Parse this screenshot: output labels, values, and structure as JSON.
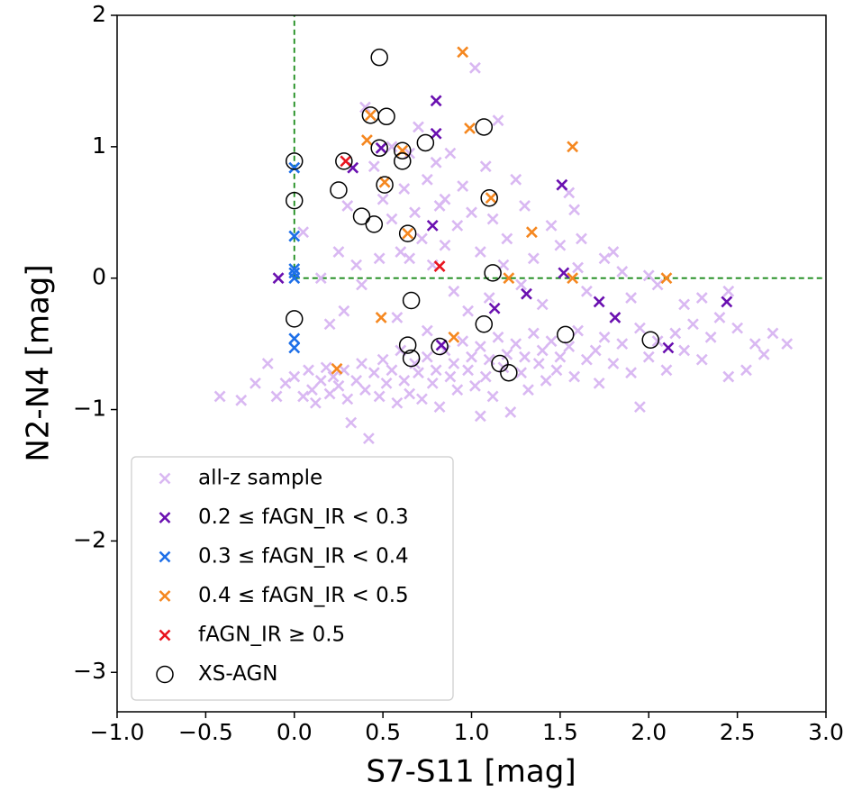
{
  "chart_data": {
    "type": "scatter",
    "xlabel": "S7-S11 [mag]",
    "ylabel": "N2-N4 [mag]",
    "xlim": [
      -1.0,
      3.0
    ],
    "ylim": [
      -3.3,
      2
    ],
    "xticks": [
      {
        "value": -1.0,
        "label": "−1.0"
      },
      {
        "value": -0.5,
        "label": "−0.5"
      },
      {
        "value": 0.0,
        "label": "0.0"
      },
      {
        "value": 0.5,
        "label": "0.5"
      },
      {
        "value": 1.0,
        "label": "1.0"
      },
      {
        "value": 1.5,
        "label": "1.5"
      },
      {
        "value": 2.0,
        "label": "2.0"
      },
      {
        "value": 2.5,
        "label": "2.5"
      },
      {
        "value": 3.0,
        "label": "3.0"
      }
    ],
    "yticks": [
      {
        "value": -3,
        "label": "−3"
      },
      {
        "value": -2,
        "label": "−2"
      },
      {
        "value": -1,
        "label": "−1"
      },
      0,
      1,
      2
    ],
    "grid": false,
    "legend": "lower left",
    "ref_lines": {
      "x": 0,
      "y": 0,
      "color": "#1a8a1a"
    },
    "series": [
      {
        "name": "all-z sample",
        "color": "#d9b8f2",
        "marker": "x",
        "x": [
          -0.42,
          -0.3,
          -0.22,
          -0.15,
          -0.1,
          -0.05,
          0.0,
          0.05,
          0.08,
          0.1,
          0.12,
          0.15,
          0.18,
          0.2,
          0.22,
          0.25,
          0.28,
          0.3,
          0.32,
          0.35,
          0.38,
          0.4,
          0.42,
          0.45,
          0.48,
          0.5,
          0.52,
          0.55,
          0.58,
          0.6,
          0.62,
          0.65,
          0.68,
          0.7,
          0.72,
          0.75,
          0.78,
          0.8,
          0.82,
          0.85,
          0.88,
          0.9,
          0.92,
          0.95,
          0.98,
          1.0,
          1.02,
          1.05,
          1.08,
          1.1,
          1.12,
          1.15,
          1.18,
          1.2,
          1.22,
          1.25,
          1.28,
          1.3,
          1.32,
          1.35,
          1.38,
          1.4,
          1.42,
          1.45,
          1.48,
          1.5,
          1.55,
          1.58,
          1.6,
          1.65,
          1.7,
          1.72,
          1.75,
          1.8,
          1.85,
          1.9,
          1.95,
          2.0,
          2.05,
          2.1,
          2.15,
          2.2,
          2.25,
          2.3,
          2.35,
          2.4,
          2.45,
          2.5,
          2.55,
          2.6,
          2.65,
          2.7,
          2.78,
          1.95,
          1.05,
          0.05,
          0.25,
          0.3,
          0.35,
          0.38,
          0.28,
          0.45,
          0.5,
          0.55,
          0.55,
          0.6,
          0.62,
          0.65,
          0.68,
          0.7,
          0.72,
          0.75,
          0.78,
          0.8,
          0.82,
          0.85,
          0.88,
          0.9,
          0.92,
          0.95,
          0.98,
          1.0,
          1.02,
          1.05,
          1.08,
          1.1,
          1.12,
          1.15,
          1.18,
          1.2,
          1.25,
          1.28,
          1.3,
          1.35,
          1.4,
          1.45,
          1.5,
          1.55,
          1.58,
          1.6,
          1.62,
          1.65,
          1.75,
          1.8,
          1.85,
          1.9,
          2.0,
          2.05,
          2.2,
          2.3,
          2.45,
          0.15,
          0.2,
          0.4,
          0.48,
          0.58,
          0.65,
          0.85,
          0.75
        ],
        "values": [
          -0.9,
          -0.93,
          -0.8,
          -0.65,
          -0.9,
          -0.8,
          -0.75,
          -0.9,
          -0.7,
          -0.85,
          -0.95,
          -0.78,
          -0.68,
          -0.88,
          -0.75,
          -0.82,
          -0.7,
          -0.92,
          -1.1,
          -0.78,
          -0.65,
          -0.85,
          -1.22,
          -0.72,
          -0.9,
          -0.62,
          -0.8,
          -0.7,
          -0.95,
          -0.55,
          -0.78,
          -0.88,
          -0.65,
          -0.72,
          -0.92,
          -0.6,
          -0.8,
          -0.7,
          -0.98,
          -0.55,
          -0.75,
          -0.65,
          -0.85,
          -0.48,
          -0.7,
          -0.6,
          -0.82,
          -0.52,
          -0.75,
          -0.62,
          -0.9,
          -0.45,
          -0.68,
          -0.58,
          -1.02,
          -0.5,
          -0.72,
          -0.6,
          -0.85,
          -0.42,
          -0.65,
          -0.55,
          -0.78,
          -0.48,
          -0.7,
          -0.6,
          -0.52,
          -0.75,
          -0.4,
          -0.62,
          -0.55,
          -0.8,
          -0.45,
          -0.65,
          -0.5,
          -0.72,
          -0.38,
          -0.6,
          -0.48,
          -0.7,
          -0.42,
          -0.55,
          -0.35,
          -0.62,
          -0.45,
          -0.3,
          -0.75,
          -0.38,
          -0.7,
          -0.5,
          -0.58,
          -0.42,
          -0.5,
          -0.98,
          -1.05,
          0.35,
          0.2,
          0.55,
          0.1,
          -0.05,
          -0.25,
          0.85,
          0.6,
          0.45,
          1.0,
          0.2,
          0.68,
          0.15,
          0.5,
          1.15,
          0.3,
          0.75,
          0.1,
          0.88,
          0.55,
          0.25,
          0.95,
          -0.1,
          0.4,
          0.7,
          -0.25,
          0.5,
          1.6,
          0.2,
          0.85,
          -0.15,
          0.45,
          1.2,
          0.1,
          0.3,
          0.75,
          -0.05,
          0.55,
          0.15,
          -0.2,
          0.4,
          0.25,
          0.65,
          0.52,
          0.08,
          0.3,
          -0.1,
          0.15,
          0.2,
          0.05,
          -0.15,
          0.02,
          -0.05,
          -0.2,
          -0.15,
          -0.1,
          0.0,
          -0.35,
          1.3,
          0.15,
          -0.3,
          0.95,
          0.6,
          -0.4
        ]
      },
      {
        "name": "0.2 ≤ fAGN_IR < 0.3",
        "color": "#6a10b0",
        "marker": "x",
        "x": [
          -0.09,
          0.33,
          0.49,
          0.8,
          0.8,
          0.78,
          1.51,
          1.52,
          1.31,
          1.13,
          1.72,
          1.81,
          2.44,
          2.11,
          0.83
        ],
        "values": [
          0.0,
          0.84,
          0.99,
          1.35,
          1.1,
          0.4,
          0.71,
          0.04,
          -0.12,
          -0.23,
          -0.18,
          -0.3,
          -0.18,
          -0.53,
          -0.51
        ]
      },
      {
        "name": "0.3 ≤ fAGN_IR < 0.4",
        "color": "#1e6fe8",
        "marker": "x",
        "x": [
          0,
          0,
          0,
          0,
          0,
          0,
          0
        ],
        "values": [
          0.84,
          0.32,
          0.07,
          0.04,
          0.0,
          -0.46,
          -0.53
        ]
      },
      {
        "name": "0.4 ≤ fAGN_IR < 0.5",
        "color": "#f5871f",
        "marker": "x",
        "x": [
          0.95,
          0.43,
          0.41,
          0.61,
          0.51,
          0.99,
          1.57,
          1.11,
          0.64,
          1.34,
          1.21,
          1.57,
          2.1,
          0.49,
          0.9,
          0.24
        ],
        "values": [
          1.72,
          1.24,
          1.05,
          0.97,
          0.73,
          1.14,
          1.0,
          0.61,
          0.34,
          0.35,
          0.0,
          0.0,
          0.0,
          -0.3,
          -0.45,
          -0.69
        ]
      },
      {
        "name": "fAGN_IR ≥ 0.5",
        "color": "#e8141e",
        "marker": "x",
        "x": [
          0.29,
          0.82
        ],
        "values": [
          0.89,
          0.09
        ]
      },
      {
        "name": "XS-AGN",
        "color": "#000000",
        "marker": "o",
        "x": [
          0.48,
          0.43,
          0.52,
          0,
          0,
          0.28,
          0.48,
          0.74,
          0.61,
          0.61,
          0.51,
          1.07,
          0.25,
          0.38,
          0.45,
          1.1,
          0.64,
          1.12,
          0.66,
          0,
          0.64,
          0.66,
          0.82,
          1.07,
          1.53,
          2.01,
          1.16,
          1.21
        ],
        "values": [
          1.68,
          1.24,
          1.23,
          0.89,
          0.59,
          0.89,
          0.99,
          1.03,
          0.97,
          0.89,
          0.71,
          1.15,
          0.67,
          0.47,
          0.41,
          0.61,
          0.34,
          0.04,
          -0.17,
          -0.31,
          -0.51,
          -0.61,
          -0.52,
          -0.35,
          -0.43,
          -0.47,
          -0.65,
          -0.72
        ]
      }
    ]
  }
}
